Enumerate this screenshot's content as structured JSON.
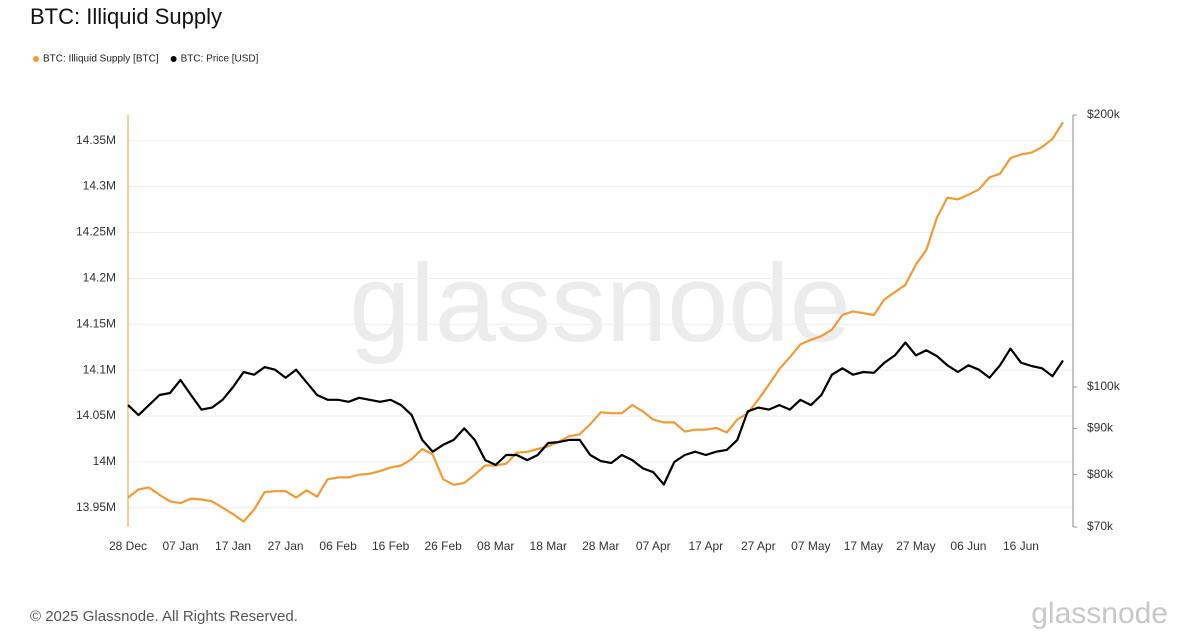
{
  "chart_data": {
    "type": "line",
    "title": "BTC: Illiquid Supply",
    "watermark": "glassnode",
    "copyright": "© 2025 Glassnode. All Rights Reserved.",
    "logo": "glassnode",
    "legend": "top-left",
    "grid": true,
    "categories": [
      "28 Dec",
      null,
      null,
      null,
      null,
      "07 Jan",
      null,
      null,
      null,
      null,
      "17 Jan",
      null,
      null,
      null,
      null,
      "27 Jan",
      null,
      null,
      null,
      null,
      "06 Feb",
      null,
      null,
      null,
      null,
      "16 Feb",
      null,
      null,
      null,
      null,
      "26 Feb",
      null,
      null,
      null,
      null,
      "08 Mar",
      null,
      null,
      null,
      null,
      "18 Mar",
      null,
      null,
      null,
      null,
      "28 Mar",
      null,
      null,
      null,
      null,
      "07 Apr",
      null,
      null,
      null,
      null,
      "17 Apr",
      null,
      null,
      null,
      null,
      "27 Apr",
      null,
      null,
      null,
      null,
      "07 May",
      null,
      null,
      null,
      null,
      "17 May",
      null,
      null,
      null,
      null,
      "27 May",
      null,
      null,
      null,
      null,
      "06 Jun",
      null,
      null,
      null,
      null,
      "16 Jun",
      null,
      null,
      null,
      null
    ],
    "ylim": [
      13929000,
      14378000
    ],
    "yticks": [
      {
        "value": 13950000,
        "label": "13.95M"
      },
      {
        "value": 14000000,
        "label": "14M"
      },
      {
        "value": 14050000,
        "label": "14.05M"
      },
      {
        "value": 14100000,
        "label": "14.1M"
      },
      {
        "value": 14150000,
        "label": "14.15M"
      },
      {
        "value": 14200000,
        "label": "14.2M"
      },
      {
        "value": 14250000,
        "label": "14.25M"
      },
      {
        "value": 14300000,
        "label": "14.3M"
      },
      {
        "value": 14350000,
        "label": "14.35M"
      }
    ],
    "y2lim": [
      70000,
      200000
    ],
    "y2log": true,
    "y2ticks": [
      {
        "value": 70000,
        "label": "$70k"
      },
      {
        "value": 80000,
        "label": "$80k"
      },
      {
        "value": 90000,
        "label": "$90k"
      },
      {
        "value": 100000,
        "label": "$100k"
      },
      {
        "value": 200000,
        "label": "$200k"
      }
    ],
    "series": [
      {
        "name": "BTC: Illiquid Supply [BTC]",
        "color": "#f39a33",
        "axis": "y",
        "values": [
          13961000,
          13970000,
          13972000,
          13964000,
          13957000,
          13955000,
          13960000,
          13959000,
          13957000,
          13950000,
          13943000,
          13935000,
          13948000,
          13967000,
          13968000,
          13968000,
          13961000,
          13969000,
          13962000,
          13981000,
          13983000,
          13983000,
          13986000,
          13987000,
          13990000,
          13994000,
          13996000,
          14003000,
          14014000,
          14008000,
          13981000,
          13975000,
          13977000,
          13986000,
          13996000,
          13996000,
          13998000,
          14010000,
          14011000,
          14014000,
          14017000,
          14022000,
          14028000,
          14030000,
          14041000,
          14054000,
          14053000,
          14053000,
          14062000,
          14055000,
          14046000,
          14043000,
          14043000,
          14033000,
          14035000,
          14035000,
          14037000,
          14032000,
          14046000,
          14053000,
          14068000,
          14084000,
          14101000,
          14114000,
          14128000,
          14133000,
          14137000,
          14144000,
          14160000,
          14164000,
          14162000,
          14160000,
          14177000,
          14185000,
          14193000,
          14215000,
          14231000,
          14266000,
          14288000,
          14286000,
          14291000,
          14297000,
          14310000,
          14314000,
          14331000,
          14335000,
          14337000,
          14343000,
          14352000,
          14370000
        ]
      },
      {
        "name": "BTC: Price [USD]",
        "color": "#000000",
        "axis": "y2",
        "values": [
          95500,
          93100,
          95500,
          98000,
          98500,
          101800,
          98000,
          94400,
          94900,
          96800,
          100000,
          103900,
          103200,
          105200,
          104500,
          102400,
          104500,
          101200,
          98000,
          96800,
          96800,
          96300,
          97300,
          96800,
          96300,
          96800,
          95500,
          93100,
          87400,
          84800,
          86300,
          87400,
          90000,
          87400,
          83000,
          82000,
          84100,
          84100,
          83000,
          84100,
          86700,
          86900,
          87400,
          87400,
          84100,
          82800,
          82400,
          84100,
          83000,
          81300,
          80500,
          78000,
          82600,
          84100,
          84800,
          84100,
          84800,
          85200,
          87400,
          94000,
          94900,
          94400,
          95500,
          94400,
          96800,
          95500,
          98000,
          103200,
          104900,
          103200,
          103900,
          103700,
          106400,
          108400,
          112000,
          108400,
          109800,
          108200,
          105700,
          103900,
          105700,
          104500,
          102400,
          105700,
          110300,
          106400,
          105500,
          104900,
          102800,
          107000
        ]
      }
    ]
  }
}
